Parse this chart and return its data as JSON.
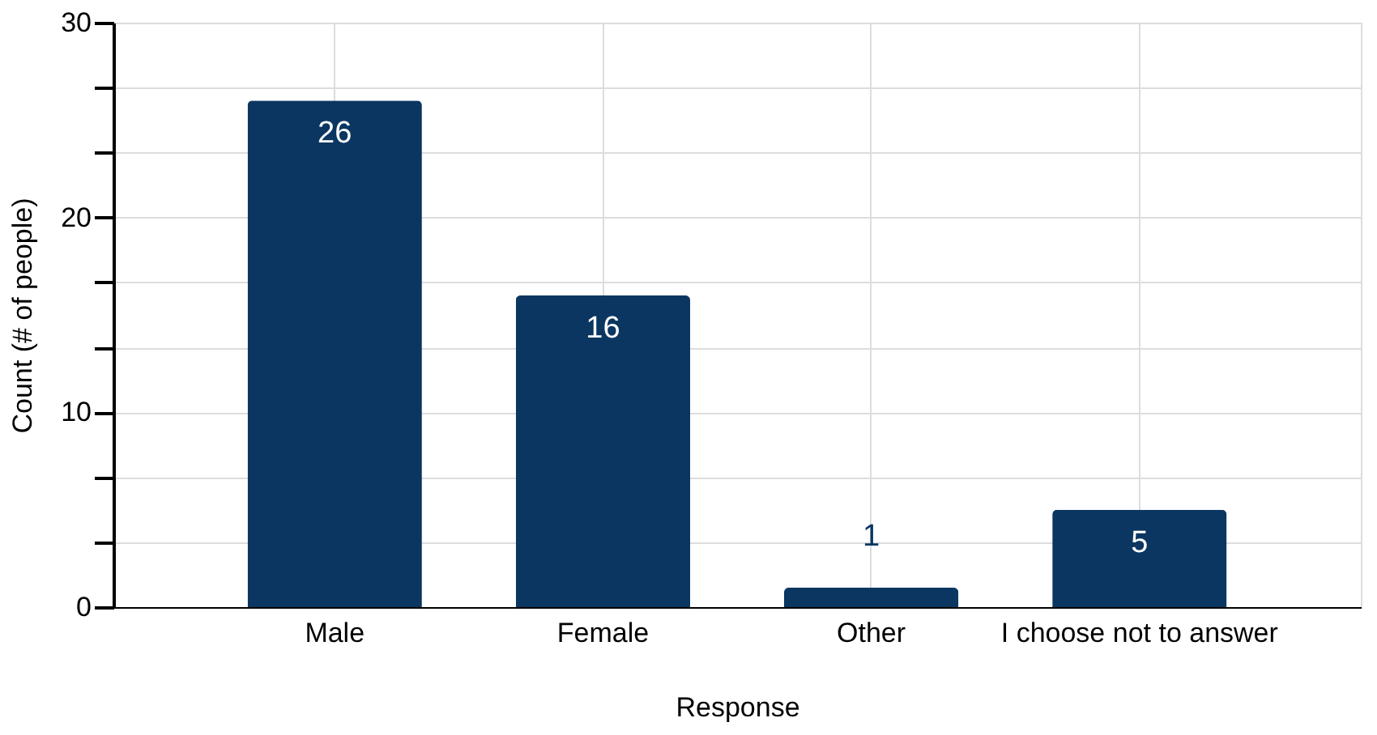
{
  "chart_data": {
    "type": "bar",
    "categories": [
      "Male",
      "Female",
      "Other",
      "I choose not to answer"
    ],
    "values": [
      26,
      16,
      1,
      5
    ],
    "color": "#0a3661",
    "xlabel": "Response",
    "ylabel": "Count (# of people)",
    "ylim": [
      0,
      30
    ],
    "yticks": [
      0,
      {
        "value": 3.33,
        "label": null
      },
      {
        "value": 6.67,
        "label": null
      },
      10,
      {
        "value": 13.33,
        "label": null
      },
      {
        "value": 16.67,
        "label": null
      },
      20,
      {
        "value": 23.33,
        "label": null
      },
      {
        "value": 26.67,
        "label": null
      },
      30
    ],
    "grid": true,
    "data_labels": true
  }
}
